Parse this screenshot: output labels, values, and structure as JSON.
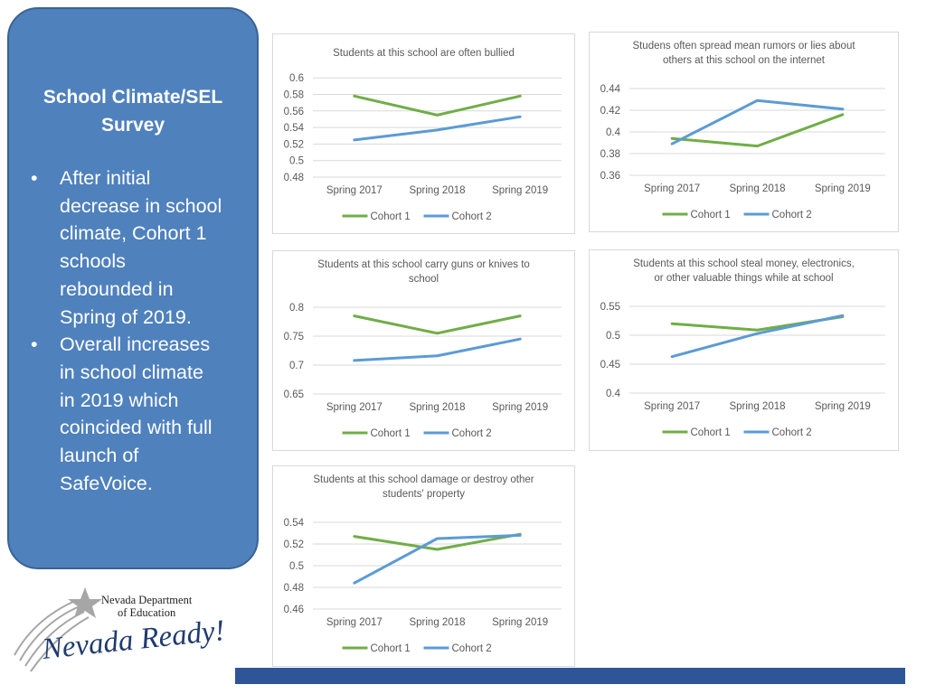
{
  "panel": {
    "title_lines": [
      "School Climate/SEL",
      "Survey"
    ],
    "bullets": [
      {
        "marker": "•",
        "lines": [
          "After initial",
          "decrease in school",
          "climate, Cohort 1",
          "schools",
          "rebounded in",
          "Spring of 2019."
        ]
      },
      {
        "marker": "•",
        "lines": [
          "Overall increases",
          "in school climate",
          "in 2019 which",
          "coincided with full",
          "launch of",
          "SafeVoice."
        ]
      }
    ]
  },
  "logo": {
    "dept_line1": "Nevada Department",
    "dept_line2": "of Education",
    "tagline": "Nevada Ready!"
  },
  "colors": {
    "panel": "#4f81bd",
    "cohort1": "#70ad47",
    "cohort2": "#5b9bd5",
    "footer_bar": "#2e5597"
  },
  "chart_data": [
    {
      "type": "line",
      "title": [
        "Students at this school are often bullied"
      ],
      "categories": [
        "Spring 2017",
        "Spring 2018",
        "Spring 2019"
      ],
      "series": [
        {
          "name": "Cohort 1",
          "values": [
            0.578,
            0.555,
            0.578
          ]
        },
        {
          "name": "Cohort 2",
          "values": [
            0.525,
            0.537,
            0.553
          ]
        }
      ],
      "yticks": [
        "0.48",
        "0.5",
        "0.52",
        "0.54",
        "0.56",
        "0.58",
        "0.6"
      ],
      "ylim": [
        0.48,
        0.6
      ],
      "grid": true,
      "legend": "bottom"
    },
    {
      "type": "line",
      "title": [
        "Studens often spread mean rumors or lies about",
        "others at this school on the internet"
      ],
      "categories": [
        "Spring 2017",
        "Spring 2018",
        "Spring 2019"
      ],
      "series": [
        {
          "name": "Cohort 1",
          "values": [
            0.394,
            0.387,
            0.416
          ]
        },
        {
          "name": "Cohort 2",
          "values": [
            0.389,
            0.429,
            0.421
          ]
        }
      ],
      "yticks": [
        "0.36",
        "0.38",
        "0.4",
        "0.42",
        "0.44"
      ],
      "ylim": [
        0.36,
        0.44
      ],
      "grid": true,
      "legend": "bottom"
    },
    {
      "type": "line",
      "title": [
        "Students at this school carry guns or knives to",
        "school"
      ],
      "categories": [
        "Spring 2017",
        "Spring 2018",
        "Spring 2019"
      ],
      "series": [
        {
          "name": "Cohort 1",
          "values": [
            0.785,
            0.755,
            0.785
          ]
        },
        {
          "name": "Cohort 2",
          "values": [
            0.708,
            0.716,
            0.745
          ]
        }
      ],
      "yticks": [
        "0.65",
        "0.7",
        "0.75",
        "0.8"
      ],
      "ylim": [
        0.65,
        0.8
      ],
      "grid": true,
      "legend": "bottom"
    },
    {
      "type": "line",
      "title": [
        "Students at this school steal money, electronics,",
        "or other valuable things while at school"
      ],
      "categories": [
        "Spring 2017",
        "Spring 2018",
        "Spring 2019"
      ],
      "series": [
        {
          "name": "Cohort 1",
          "values": [
            0.52,
            0.509,
            0.532
          ]
        },
        {
          "name": "Cohort 2",
          "values": [
            0.463,
            0.503,
            0.534
          ]
        }
      ],
      "yticks": [
        "0.4",
        "0.45",
        "0.5",
        "0.55"
      ],
      "ylim": [
        0.4,
        0.55
      ],
      "grid": true,
      "legend": "bottom"
    },
    {
      "type": "line",
      "title": [
        "Students at this school damage or destroy other",
        "students' property"
      ],
      "categories": [
        "Spring 2017",
        "Spring 2018",
        "Spring 2019"
      ],
      "series": [
        {
          "name": "Cohort 1",
          "values": [
            0.527,
            0.515,
            0.529
          ]
        },
        {
          "name": "Cohort 2",
          "values": [
            0.484,
            0.525,
            0.528
          ]
        }
      ],
      "yticks": [
        "0.46",
        "0.48",
        "0.5",
        "0.52",
        "0.54"
      ],
      "ylim": [
        0.46,
        0.54
      ],
      "grid": true,
      "legend": "bottom"
    }
  ]
}
